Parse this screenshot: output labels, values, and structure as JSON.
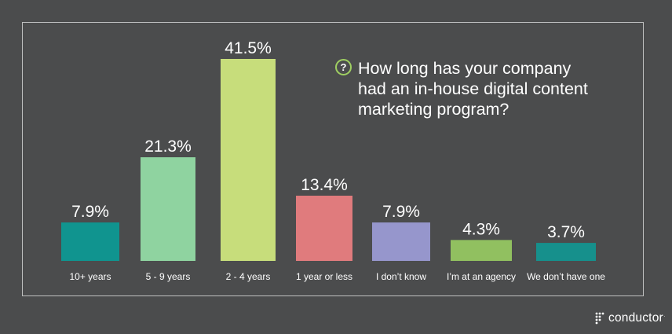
{
  "question": {
    "badge": "?",
    "text": "How long has your company had an in-house digital content marketing program?"
  },
  "logo": {
    "text": "conductor",
    "tm": "."
  },
  "chart_data": {
    "type": "bar",
    "title": "",
    "xlabel": "",
    "ylabel": "",
    "ylim": [
      0,
      41.5
    ],
    "grid": false,
    "categories": [
      "10+ years",
      "5 - 9 years",
      "2 - 4 years",
      "1 year or less",
      "I don’t know",
      "I’m at an agency",
      "We don’t have one"
    ],
    "values": [
      7.9,
      21.3,
      41.5,
      13.4,
      7.9,
      4.3,
      3.7
    ],
    "value_labels": [
      "7.9%",
      "21.3%",
      "41.5%",
      "13.4%",
      "7.9%",
      "4.3%",
      "3.7%"
    ],
    "colors": [
      "#10948f",
      "#8fd3a0",
      "#c7dd7b",
      "#e07b7d",
      "#9696cc",
      "#91c060",
      "#16908c"
    ]
  },
  "theme": {
    "background": "#4b4c4d",
    "text": "#ffffff",
    "frame": "#bfc0c0",
    "accent": "#9fcf62"
  }
}
